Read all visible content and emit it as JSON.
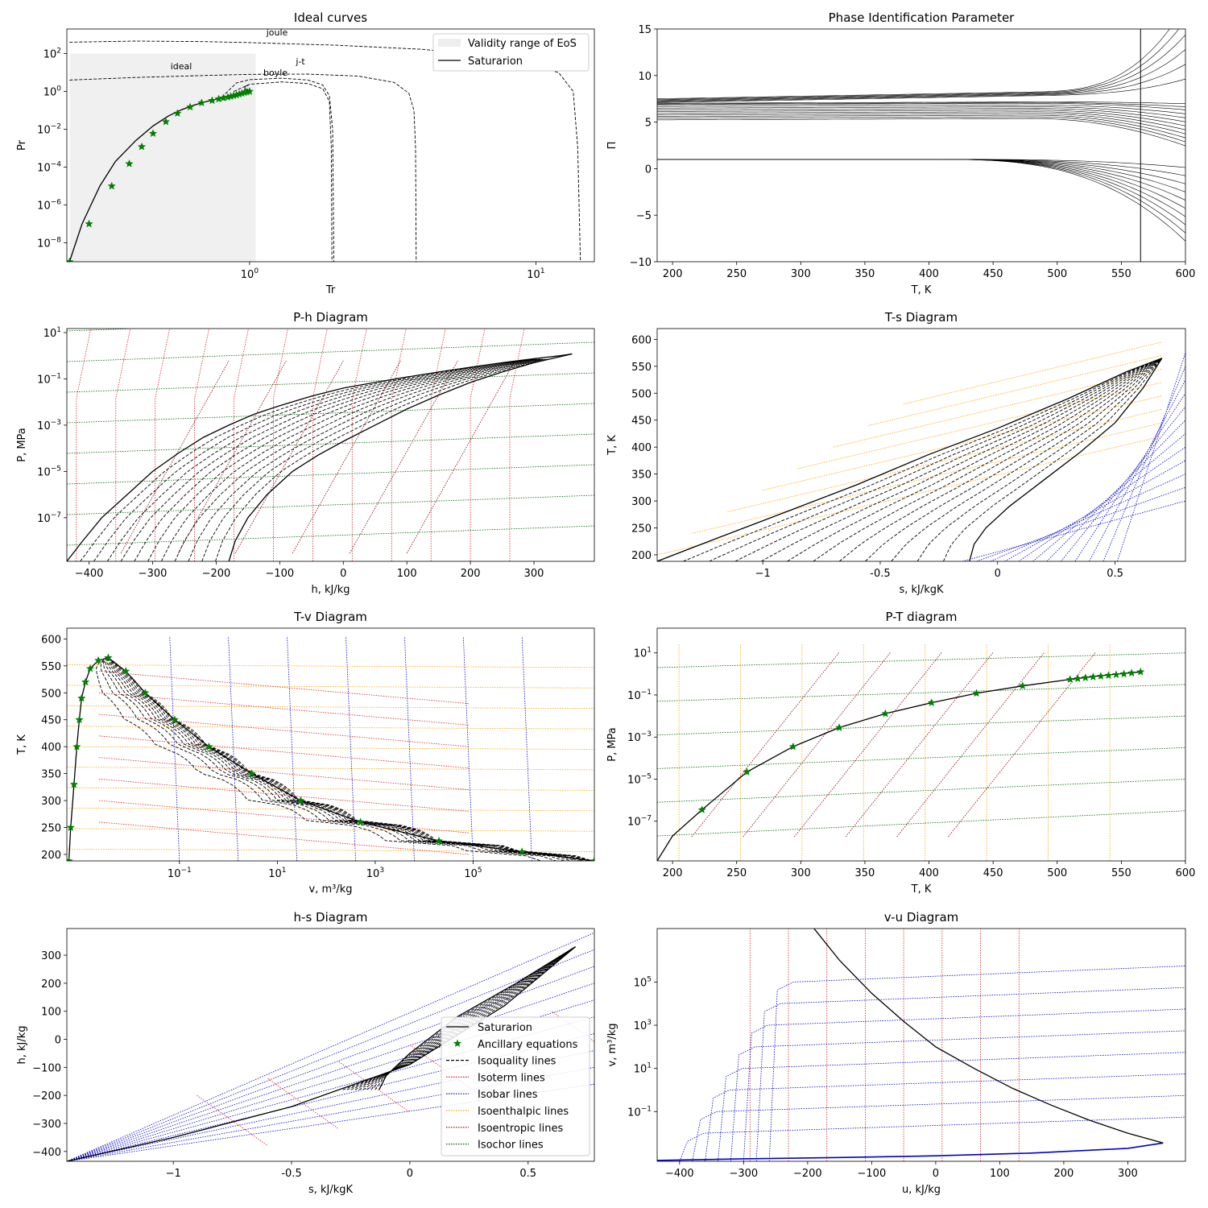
{
  "colors": {
    "saturation": "#000000",
    "ancillary": "#008000",
    "isoquality": "#000000",
    "isotherm": "#d62728",
    "isobar": "#0000cc",
    "isoenthalpic": "#ffa500",
    "isoentropic": "#8b0000",
    "isochor": "#006400",
    "validity": "#eeeeee"
  },
  "chart_data": [
    {
      "id": "ideal",
      "type": "line",
      "title": "Ideal curves",
      "xlabel": "Tr",
      "ylabel": "Pr",
      "xscale": "log",
      "yscale": "log",
      "xlim": [
        0.23,
        16
      ],
      "ylim": [
        1e-09,
        2000
      ],
      "x_ticks": [
        "10^0",
        "10^1"
      ],
      "y_ticks": [
        "10^−8",
        "10^−6",
        "10^−4",
        "10^−2",
        "10^0",
        "10^2"
      ],
      "legend": {
        "position": "top-right",
        "entries": [
          "Validity range of EoS",
          "Saturarion"
        ]
      },
      "annotations": [
        "joule",
        "ideal",
        "j-t",
        "boyle",
        "c"
      ],
      "validity_range": {
        "Tr": [
          0.235,
          1.05
        ],
        "Pr": [
          1e-09,
          100
        ]
      },
      "series": [
        {
          "name": "Saturarion",
          "style": "solid",
          "x": [
            0.235,
            0.26,
            0.3,
            0.34,
            0.4,
            0.46,
            0.52,
            0.58,
            0.64,
            0.7,
            0.76,
            0.82,
            0.88,
            0.94,
            1.0
          ],
          "y": [
            1e-09,
            1e-07,
            1e-05,
            0.0002,
            0.0025,
            0.015,
            0.05,
            0.11,
            0.19,
            0.28,
            0.38,
            0.5,
            0.63,
            0.8,
            1.0
          ]
        },
        {
          "name": "joule",
          "style": "dashed",
          "x": [
            0.235,
            0.4,
            0.7,
            1.0,
            2.0,
            4.0,
            8.0,
            12.0,
            13.5,
            14.0,
            14.3
          ],
          "y": [
            400,
            460,
            430,
            380,
            280,
            170,
            60,
            10,
            1,
            0.001,
            1e-09
          ]
        },
        {
          "name": "j-t",
          "style": "dashed",
          "x": [
            0.235,
            0.4,
            0.7,
            1.0,
            1.6,
            2.4,
            3.2,
            3.6,
            3.75,
            3.8,
            3.82
          ],
          "y": [
            4,
            5.5,
            7,
            8,
            8.3,
            6.5,
            3,
            0.8,
            0.1,
            0.001,
            1e-09
          ]
        },
        {
          "name": "boyle",
          "style": "dashed",
          "x": [
            0.8,
            0.9,
            1.0,
            1.3,
            1.6,
            1.8,
            1.9,
            1.95,
            1.97
          ],
          "y": [
            0.5,
            2.8,
            4.2,
            5,
            4,
            2.2,
            0.6,
            0.01,
            1e-09
          ]
        },
        {
          "name": "ideal",
          "style": "dashed",
          "x": [
            0.88,
            1.0,
            1.3,
            1.6,
            1.8,
            1.9,
            1.93,
            1.94
          ],
          "y": [
            1.0,
            2.4,
            3.2,
            2.6,
            1.4,
            0.3,
            0.001,
            1e-09
          ]
        }
      ],
      "ancillary": {
        "x": [
          0.235,
          0.275,
          0.33,
          0.38,
          0.42,
          0.46,
          0.51,
          0.56,
          0.62,
          0.68,
          0.74,
          0.78,
          0.81,
          0.84,
          0.86,
          0.88,
          0.9,
          0.92,
          0.94,
          0.96,
          0.98,
          1.0
        ],
        "y": [
          1e-09,
          1e-07,
          1e-05,
          0.00015,
          0.0012,
          0.006,
          0.025,
          0.07,
          0.15,
          0.25,
          0.33,
          0.4,
          0.45,
          0.5,
          0.55,
          0.6,
          0.65,
          0.72,
          0.8,
          0.87,
          0.93,
          1.0
        ]
      }
    },
    {
      "id": "pip",
      "type": "line",
      "title": "Phase Identification Parameter",
      "xlabel": "T, K",
      "ylabel": "Π",
      "xlim": [
        188,
        600
      ],
      "ylim": [
        -10,
        15
      ],
      "x_ticks": [
        200,
        250,
        300,
        350,
        400,
        450,
        500,
        550,
        600
      ],
      "y_ticks": [
        -10,
        -5,
        0,
        5,
        10,
        15
      ],
      "series_note": "family of isobar PIP curves",
      "critical_T": 565
    },
    {
      "id": "ph",
      "type": "line",
      "title": "P-h Diagram",
      "xlabel": "h, kJ/kg",
      "ylabel": "P, MPa",
      "yscale": "log",
      "xlim": [
        -435,
        395
      ],
      "ylim": [
        1.3e-09,
        15
      ],
      "x_ticks": [
        -400,
        -300,
        -200,
        -100,
        0,
        100,
        200,
        300
      ],
      "y_ticks": [
        "10^−7",
        "10^−5",
        "10^−3",
        "10^−1",
        "10^1"
      ],
      "dome": {
        "liquid_h": [
          -435,
          -410,
          -380,
          -340,
          -300,
          -260,
          -220,
          -180,
          -140,
          -100,
          -50,
          0,
          50,
          100,
          150,
          200,
          250,
          300,
          340,
          360
        ],
        "liquid_P": [
          1.3e-09,
          1e-08,
          1e-07,
          1e-06,
          1e-05,
          6e-05,
          0.0003,
          0.001,
          0.003,
          0.007,
          0.018,
          0.04,
          0.07,
          0.12,
          0.2,
          0.32,
          0.5,
          0.75,
          1.0,
          1.2
        ],
        "vapor_h": [
          -180,
          -170,
          -150,
          -120,
          -80,
          -40,
          0,
          50,
          100,
          150,
          200,
          250,
          300,
          340,
          360
        ],
        "vapor_P": [
          1.3e-09,
          1e-08,
          1e-07,
          1e-06,
          1e-05,
          5e-05,
          0.0002,
          0.001,
          0.005,
          0.02,
          0.07,
          0.2,
          0.5,
          0.9,
          1.2
        ]
      }
    },
    {
      "id": "ts",
      "type": "line",
      "title": "T-s Diagram",
      "xlabel": "s, kJ/kgK",
      "ylabel": "T, K",
      "xlim": [
        -1.45,
        0.8
      ],
      "ylim": [
        188,
        620
      ],
      "x_ticks": [
        -1.0,
        -0.5,
        0.0,
        0.5
      ],
      "y_ticks": [
        200,
        250,
        300,
        350,
        400,
        450,
        500,
        550,
        600
      ],
      "dome": {
        "liquid_s": [
          -1.45,
          -1.2,
          -0.9,
          -0.6,
          -0.3,
          0.0,
          0.3,
          0.55,
          0.7
        ],
        "liquid_T": [
          188,
          230,
          280,
          330,
          385,
          435,
          490,
          540,
          565
        ],
        "vapor_s": [
          -0.12,
          -0.1,
          -0.05,
          0.05,
          0.2,
          0.35,
          0.5,
          0.62,
          0.7
        ],
        "vapor_T": [
          188,
          220,
          250,
          290,
          340,
          390,
          445,
          510,
          565
        ]
      }
    },
    {
      "id": "tv",
      "type": "line",
      "title": "T-v Diagram",
      "xlabel": "v, m³/kg",
      "ylabel": "T, K",
      "xscale": "log",
      "xlim": [
        0.0005,
        30000000.0
      ],
      "ylim": [
        188,
        620
      ],
      "x_ticks": [
        "10^−1",
        "10^1",
        "10^3",
        "10^5"
      ],
      "y_ticks": [
        200,
        250,
        300,
        350,
        400,
        450,
        500,
        550,
        600
      ],
      "dome": {
        "liquid_v": [
          0.00055,
          0.0006,
          0.0007,
          0.0008,
          0.0009,
          0.001,
          0.0012,
          0.0015,
          0.0022,
          0.0035
        ],
        "liquid_T": [
          188,
          250,
          330,
          400,
          450,
          490,
          520,
          545,
          560,
          565
        ],
        "vapor_v": [
          30000000.0,
          1000000.0,
          20000.0,
          500,
          30,
          3,
          0.4,
          0.08,
          0.02,
          0.008,
          0.0035
        ],
        "vapor_T": [
          188,
          205,
          225,
          260,
          300,
          350,
          400,
          450,
          500,
          540,
          565
        ]
      }
    },
    {
      "id": "pt",
      "type": "line",
      "title": "P-T diagram",
      "xlabel": "T, K",
      "ylabel": "P, MPa",
      "yscale": "log",
      "xlim": [
        188,
        600
      ],
      "ylim": [
        1.3e-09,
        150
      ],
      "x_ticks": [
        200,
        250,
        300,
        350,
        400,
        450,
        500,
        550,
        600
      ],
      "y_ticks": [
        "10^−7",
        "10^−5",
        "10^−3",
        "10^−1",
        "10^1"
      ],
      "saturation": {
        "T": [
          188,
          200,
          223,
          258,
          294,
          330,
          366,
          402,
          437,
          473,
          510,
          540,
          565
        ],
        "P": [
          1.3e-09,
          2e-08,
          3.5e-07,
          2.2e-05,
          0.00035,
          0.0028,
          0.013,
          0.043,
          0.12,
          0.27,
          0.55,
          0.9,
          1.25
        ]
      },
      "ancillary": {
        "T": [
          223,
          258,
          294,
          330,
          366,
          402,
          437,
          473,
          510,
          516,
          522,
          528,
          534,
          540,
          546,
          552,
          558,
          565
        ],
        "P": [
          3.5e-07,
          2.2e-05,
          0.00035,
          0.0028,
          0.013,
          0.043,
          0.12,
          0.27,
          0.55,
          0.6,
          0.66,
          0.72,
          0.78,
          0.85,
          0.92,
          1.0,
          1.1,
          1.25
        ]
      }
    },
    {
      "id": "hs",
      "type": "line",
      "title": "h-s Diagram",
      "xlabel": "s, kJ/kgK",
      "ylabel": "h, kJ/kg",
      "xlim": [
        -1.45,
        0.78
      ],
      "ylim": [
        -435,
        395
      ],
      "x_ticks": [
        -1.0,
        -0.5,
        0.0,
        0.5
      ],
      "y_ticks": [
        -400,
        -300,
        -200,
        -100,
        0,
        100,
        200,
        300
      ],
      "legend": {
        "position": "lower-right",
        "entries": [
          "Saturarion",
          "Ancillary equations",
          "Isoquality lines",
          "Isoterm lines",
          "Isobar lines",
          "Isoenthalpic lines",
          "Isoentropic lines",
          "Isochor lines"
        ]
      },
      "dome": {
        "liquid_s": [
          -1.45,
          -1.0,
          -0.5,
          0.0,
          0.4,
          0.7
        ],
        "liquid_h": [
          -435,
          -350,
          -240,
          -90,
          120,
          330
        ],
        "vapor_s": [
          -0.13,
          -0.1,
          0.0,
          0.2,
          0.45,
          0.7
        ],
        "vapor_h": [
          -180,
          -130,
          -50,
          80,
          200,
          330
        ]
      }
    },
    {
      "id": "vu",
      "type": "line",
      "title": "v-u Diagram",
      "xlabel": "u, kJ/kg",
      "ylabel": "v, m³/kg",
      "yscale": "log",
      "xlim": [
        -435,
        390
      ],
      "ylim": [
        0.0005,
        30000000.0
      ],
      "x_ticks": [
        -400,
        -300,
        -200,
        -100,
        0,
        100,
        200,
        300
      ],
      "y_ticks": [
        "10^−1",
        "10^1",
        "10^3",
        "10^5"
      ],
      "dome": {
        "liquid_u": [
          -435,
          -300,
          -150,
          0,
          150,
          300,
          355
        ],
        "liquid_v": [
          0.00055,
          0.00065,
          0.00075,
          0.0009,
          0.0012,
          0.002,
          0.0035
        ],
        "vapor_u": [
          -190,
          -150,
          -100,
          -50,
          0,
          60,
          120,
          180,
          240,
          300,
          355
        ],
        "vapor_v": [
          30000000.0,
          1000000.0,
          30000.0,
          1500,
          100,
          10,
          1.2,
          0.2,
          0.04,
          0.01,
          0.0035
        ]
      }
    }
  ]
}
